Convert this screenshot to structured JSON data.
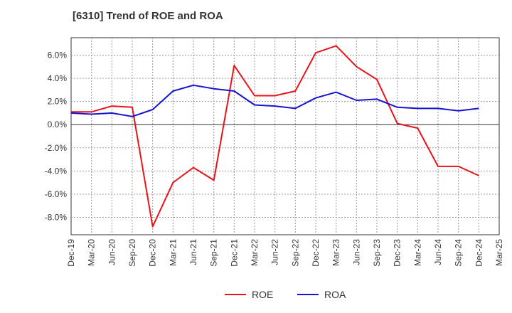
{
  "chart_data": {
    "type": "line",
    "title": "[6310]  Trend of ROE and ROA",
    "xlabel": "",
    "ylabel": "",
    "categories": [
      "Dec-19",
      "Mar-20",
      "Jun-20",
      "Sep-20",
      "Dec-20",
      "Mar-21",
      "Jun-21",
      "Sep-21",
      "Dec-21",
      "Mar-22",
      "Jun-22",
      "Sep-22",
      "Dec-22",
      "Mar-23",
      "Jun-23",
      "Sep-23",
      "Dec-23",
      "Mar-24",
      "Jun-24",
      "Sep-24",
      "Dec-24",
      "Mar-25"
    ],
    "y_ticks": [
      "6.0%",
      "4.0%",
      "2.0%",
      "0.0%",
      "-2.0%",
      "-4.0%",
      "-6.0%",
      "-8.0%"
    ],
    "y_tick_values": [
      6,
      4,
      2,
      0,
      -2,
      -4,
      -6,
      -8
    ],
    "ylim": [
      -9.5,
      7.5
    ],
    "grid": true,
    "legend_position": "bottom",
    "series": [
      {
        "name": "ROE",
        "color": "#e8141a",
        "values": [
          1.1,
          1.1,
          1.6,
          1.5,
          -8.8,
          -5.0,
          -3.7,
          -4.8,
          5.1,
          2.5,
          2.5,
          2.9,
          6.2,
          6.8,
          5.0,
          3.9,
          0.1,
          -0.3,
          -3.6,
          -3.6,
          -4.4,
          null
        ]
      },
      {
        "name": "ROA",
        "color": "#1414d2",
        "values": [
          1.0,
          0.9,
          1.0,
          0.7,
          1.3,
          2.9,
          3.4,
          3.1,
          2.9,
          1.7,
          1.6,
          1.4,
          2.3,
          2.8,
          2.1,
          2.2,
          1.5,
          1.4,
          1.4,
          1.2,
          1.4,
          null
        ]
      }
    ]
  }
}
